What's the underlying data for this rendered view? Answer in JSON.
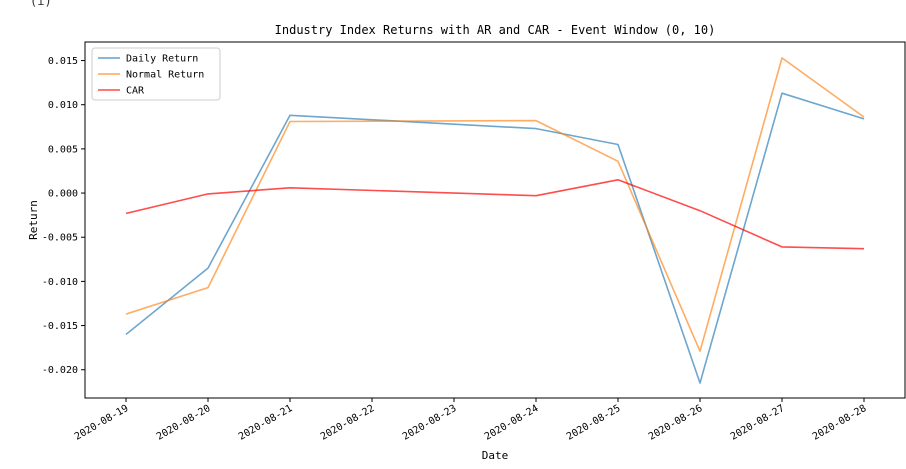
{
  "top_fragment": "(i)",
  "chart_data": {
    "type": "line",
    "title": "Industry Index Returns with AR and CAR - Event Window (0, 10)",
    "xlabel": "Date",
    "ylabel": "Return",
    "x": [
      "2020-08-19",
      "2020-08-20",
      "2020-08-21",
      "2020-08-24",
      "2020-08-25",
      "2020-08-26",
      "2020-08-27",
      "2020-08-28"
    ],
    "x_ticks": [
      "2020-08-19",
      "2020-08-20",
      "2020-08-21",
      "2020-08-22",
      "2020-08-23",
      "2020-08-24",
      "2020-08-25",
      "2020-08-26",
      "2020-08-27",
      "2020-08-28"
    ],
    "y_ticks": [
      "0.015",
      "0.010",
      "0.005",
      "0.000",
      "-0.005",
      "-0.010",
      "-0.015",
      "-0.020"
    ],
    "ylim": [
      -0.0232,
      0.0171
    ],
    "grid": false,
    "legend_position": "upper-left",
    "series": [
      {
        "name": "Daily Return",
        "color": "#1f77b4",
        "values": [
          -0.016,
          -0.0085,
          0.0088,
          0.0073,
          0.0055,
          -0.0215,
          0.0113,
          0.0084
        ]
      },
      {
        "name": "Normal Return",
        "color": "#ff7f0e",
        "values": [
          -0.0137,
          -0.0107,
          0.0081,
          0.0082,
          0.0036,
          -0.0179,
          0.0153,
          0.0086
        ]
      },
      {
        "name": "CAR",
        "color": "#ff0000",
        "values": [
          -0.0023,
          -0.0001,
          0.0006,
          -0.0003,
          0.0015,
          -0.002,
          -0.0061,
          -0.0063
        ]
      }
    ]
  }
}
